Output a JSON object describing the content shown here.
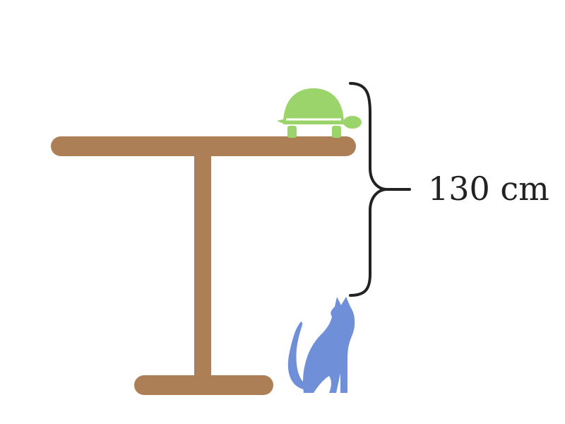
{
  "measurement": {
    "label": "130 cm"
  },
  "colors": {
    "table": "#ad7f57",
    "turtle": "#9bd46a",
    "turtle_shell_line": "#ffffff",
    "cat": "#6f8fd8",
    "brace": "#222222",
    "background": "#ffffff"
  },
  "icons": {
    "top_object": "turtle-icon",
    "bottom_object": "cat-icon",
    "bracket": "curly-brace"
  }
}
